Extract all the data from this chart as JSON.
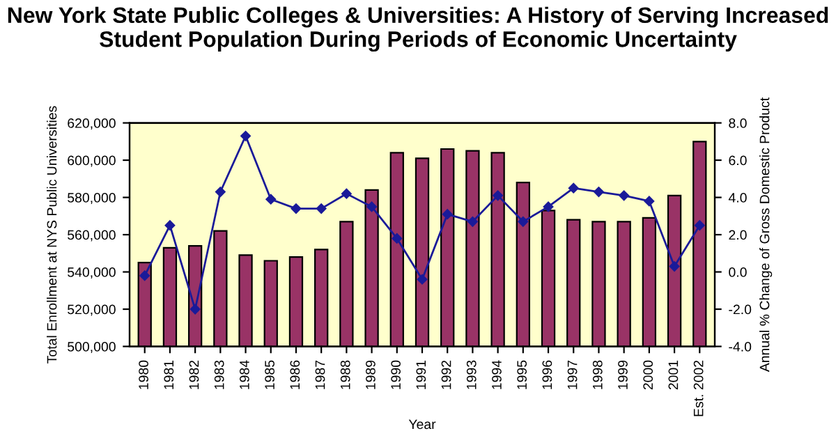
{
  "chart_data": {
    "type": "bar",
    "title": "New York State Public Colleges & Universities: A History of Serving Increased Student Population During Periods of Economic Uncertainty",
    "xlabel": "Year",
    "ylabel": "Total Enrollment at NYS Public Universities",
    "y2label": "Annual % Change of Gross Domestic Product",
    "categories": [
      "1980",
      "1981",
      "1982",
      "1983",
      "1984",
      "1985",
      "1986",
      "1987",
      "1988",
      "1989",
      "1990",
      "1991",
      "1992",
      "1993",
      "1994",
      "1995",
      "1996",
      "1997",
      "1998",
      "1999",
      "2000",
      "2001",
      "Est. 2002"
    ],
    "series": [
      {
        "color": "#993366",
        "values": [
          545000,
          553000,
          554000,
          562000,
          549000,
          546000,
          548000,
          552000,
          567000,
          584000,
          604000,
          601000,
          606000,
          605000,
          604000,
          588000,
          573000,
          568000,
          567000,
          567000,
          569000,
          581000,
          610000
        ]
      },
      {
        "type": "line",
        "axis": "y2",
        "color": "#1a1a99",
        "marker": "diamond",
        "line_style": "solid",
        "values": [
          -0.2,
          2.5,
          -2.0,
          4.3,
          7.3,
          3.9,
          3.4,
          3.4,
          4.2,
          3.5,
          1.8,
          -0.4,
          3.1,
          2.7,
          4.1,
          2.7,
          3.5,
          4.5,
          4.3,
          4.1,
          3.8,
          0.3,
          2.5
        ]
      }
    ],
    "ylim": [
      500000,
      620000
    ],
    "yticks": [
      {
        "value": 500000,
        "label": "500,000"
      },
      {
        "value": 520000,
        "label": "520,000"
      },
      {
        "value": 540000,
        "label": "540,000"
      },
      {
        "value": 560000,
        "label": "560,000"
      },
      {
        "value": 580000,
        "label": "580,000"
      },
      {
        "value": 600000,
        "label": "600,000"
      },
      {
        "value": 620000,
        "label": "620,000"
      }
    ],
    "y2lim": [
      -4,
      8
    ],
    "y2ticks": [
      {
        "value": -4,
        "label": "-4.0"
      },
      {
        "value": -2,
        "label": "-2.0"
      },
      {
        "value": 0,
        "label": "0.0"
      },
      {
        "value": 2,
        "label": "2.0"
      },
      {
        "value": 4,
        "label": "4.0"
      },
      {
        "value": 6,
        "label": "6.0"
      },
      {
        "value": 8,
        "label": "8.0"
      }
    ],
    "grid": false,
    "legend": false
  }
}
